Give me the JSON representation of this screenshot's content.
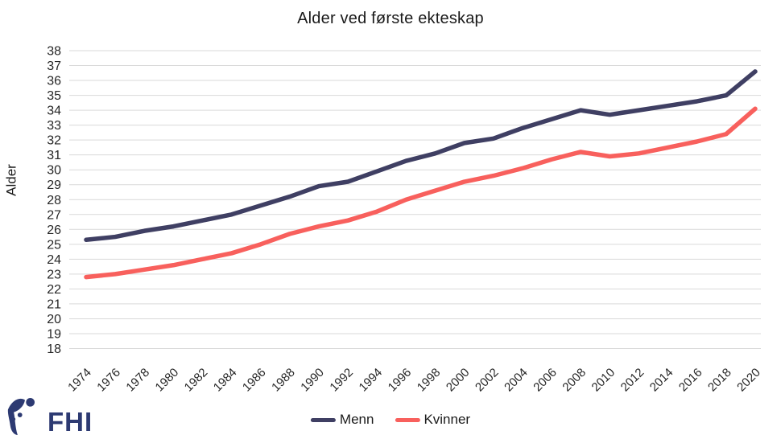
{
  "title": "Alder ved første ekteskap",
  "y_axis_label": "Alder",
  "legend": {
    "items": [
      {
        "label": "Menn",
        "color": "#3f3f63"
      },
      {
        "label": "Kvinner",
        "color": "#f8605d"
      }
    ]
  },
  "logo": {
    "text": "FHI",
    "color": "#2d3a72"
  },
  "colors": {
    "menn_line": "#3f3f63",
    "kvinner_line": "#f8605d",
    "gridline": "#d9d9d9",
    "text": "#262626"
  },
  "chart_data": {
    "type": "line",
    "title": "Alder ved første ekteskap",
    "xlabel": "",
    "ylabel": "Alder",
    "ylim": [
      18,
      38
    ],
    "ytick_step": 1,
    "grid": true,
    "legend_position": "bottom-center",
    "x": [
      1974,
      1976,
      1978,
      1980,
      1982,
      1984,
      1986,
      1988,
      1990,
      1992,
      1994,
      1996,
      1998,
      2000,
      2002,
      2004,
      2006,
      2008,
      2010,
      2012,
      2014,
      2016,
      2018,
      2020
    ],
    "series": [
      {
        "name": "Menn",
        "color": "#3f3f63",
        "values": [
          25.3,
          25.5,
          25.9,
          26.2,
          26.6,
          27.0,
          27.6,
          28.2,
          28.9,
          29.2,
          29.9,
          30.6,
          31.1,
          31.8,
          32.1,
          32.8,
          33.4,
          34.0,
          33.7,
          34.0,
          34.3,
          34.6,
          35.0,
          36.6
        ]
      },
      {
        "name": "Kvinner",
        "color": "#f8605d",
        "values": [
          22.8,
          23.0,
          23.3,
          23.6,
          24.0,
          24.4,
          25.0,
          25.7,
          26.2,
          26.6,
          27.2,
          28.0,
          28.6,
          29.2,
          29.6,
          30.1,
          30.7,
          31.2,
          30.9,
          31.1,
          31.5,
          31.9,
          32.4,
          34.1
        ]
      }
    ]
  }
}
